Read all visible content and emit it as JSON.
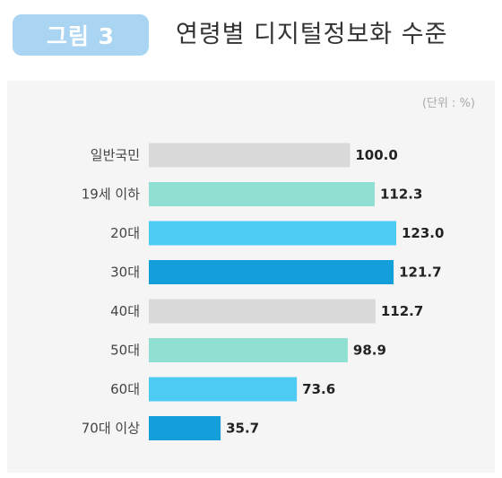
{
  "figure": {
    "badge": "그림 3",
    "title": "연령별 디지털정보화 수준",
    "unit": "(단위 : %)"
  },
  "chart_data": {
    "type": "bar",
    "orientation": "horizontal",
    "title": "연령별 디지털정보화 수준",
    "unit": "(단위 : %)",
    "categories": [
      "일반국민",
      "19세 이하",
      "20대",
      "30대",
      "40대",
      "50대",
      "60대",
      "70대 이상"
    ],
    "values": [
      100.0,
      112.3,
      123.0,
      121.7,
      112.7,
      98.9,
      73.6,
      35.7
    ],
    "value_labels": [
      "100.0",
      "112.3",
      "123.0",
      "121.7",
      "112.7",
      "98.9",
      "73.6",
      "35.7"
    ],
    "colors": [
      "#d9d9d9",
      "#8fdfd2",
      "#4ecbf2",
      "#149fdb",
      "#d9d9d9",
      "#8fdfd2",
      "#4ecbf2",
      "#149fdb"
    ],
    "xlim": [
      0,
      123
    ],
    "grid": false,
    "legend": "none"
  }
}
